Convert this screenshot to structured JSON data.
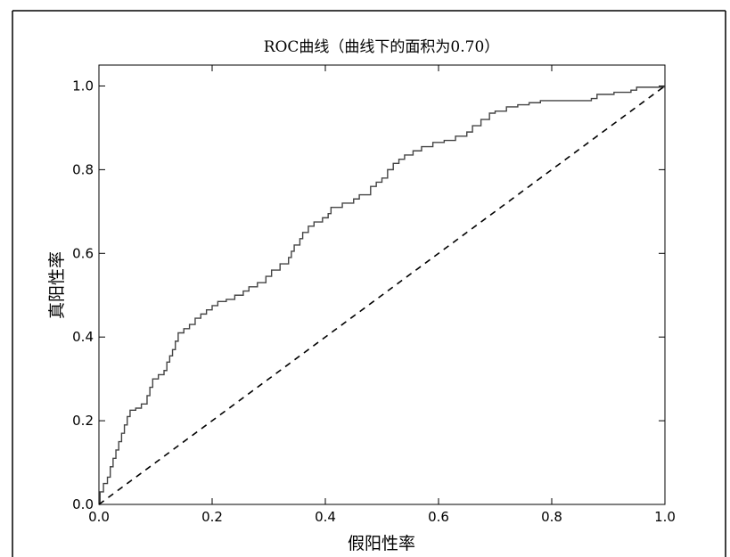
{
  "chart_data": {
    "type": "line",
    "title": "ROC曲线（曲线下的面积为0.70）",
    "xlabel": "假阳性率",
    "ylabel": "真阳性率",
    "xlim": [
      0.0,
      1.0
    ],
    "ylim": [
      0.0,
      1.05
    ],
    "xticks": [
      "0.0",
      "0.2",
      "0.4",
      "0.6",
      "0.8",
      "1.0"
    ],
    "yticks": [
      "0.0",
      "0.2",
      "0.4",
      "0.6",
      "0.8",
      "1.0"
    ],
    "grid": false,
    "legend": "none",
    "series": [
      {
        "style": "solid-step",
        "color": "#444444",
        "points": [
          [
            0.0,
            0.0
          ],
          [
            0.002,
            0.03
          ],
          [
            0.008,
            0.05
          ],
          [
            0.015,
            0.065
          ],
          [
            0.02,
            0.09
          ],
          [
            0.025,
            0.11
          ],
          [
            0.03,
            0.13
          ],
          [
            0.035,
            0.15
          ],
          [
            0.04,
            0.17
          ],
          [
            0.045,
            0.19
          ],
          [
            0.05,
            0.21
          ],
          [
            0.055,
            0.225
          ],
          [
            0.065,
            0.23
          ],
          [
            0.075,
            0.24
          ],
          [
            0.085,
            0.26
          ],
          [
            0.09,
            0.28
          ],
          [
            0.095,
            0.3
          ],
          [
            0.105,
            0.31
          ],
          [
            0.115,
            0.32
          ],
          [
            0.12,
            0.34
          ],
          [
            0.125,
            0.355
          ],
          [
            0.13,
            0.37
          ],
          [
            0.135,
            0.39
          ],
          [
            0.14,
            0.41
          ],
          [
            0.15,
            0.42
          ],
          [
            0.16,
            0.43
          ],
          [
            0.17,
            0.445
          ],
          [
            0.18,
            0.455
          ],
          [
            0.19,
            0.465
          ],
          [
            0.2,
            0.475
          ],
          [
            0.21,
            0.485
          ],
          [
            0.225,
            0.49
          ],
          [
            0.24,
            0.5
          ],
          [
            0.255,
            0.51
          ],
          [
            0.265,
            0.52
          ],
          [
            0.28,
            0.53
          ],
          [
            0.295,
            0.545
          ],
          [
            0.305,
            0.56
          ],
          [
            0.32,
            0.575
          ],
          [
            0.335,
            0.59
          ],
          [
            0.34,
            0.605
          ],
          [
            0.345,
            0.62
          ],
          [
            0.355,
            0.635
          ],
          [
            0.36,
            0.65
          ],
          [
            0.37,
            0.665
          ],
          [
            0.38,
            0.675
          ],
          [
            0.395,
            0.685
          ],
          [
            0.405,
            0.695
          ],
          [
            0.41,
            0.71
          ],
          [
            0.43,
            0.72
          ],
          [
            0.45,
            0.73
          ],
          [
            0.46,
            0.74
          ],
          [
            0.48,
            0.76
          ],
          [
            0.49,
            0.77
          ],
          [
            0.5,
            0.78
          ],
          [
            0.51,
            0.8
          ],
          [
            0.52,
            0.815
          ],
          [
            0.53,
            0.825
          ],
          [
            0.54,
            0.835
          ],
          [
            0.555,
            0.845
          ],
          [
            0.57,
            0.855
          ],
          [
            0.59,
            0.865
          ],
          [
            0.61,
            0.87
          ],
          [
            0.63,
            0.88
          ],
          [
            0.65,
            0.89
          ],
          [
            0.66,
            0.905
          ],
          [
            0.675,
            0.92
          ],
          [
            0.69,
            0.935
          ],
          [
            0.7,
            0.94
          ],
          [
            0.72,
            0.95
          ],
          [
            0.74,
            0.955
          ],
          [
            0.76,
            0.96
          ],
          [
            0.78,
            0.965
          ],
          [
            0.84,
            0.965
          ],
          [
            0.87,
            0.97
          ],
          [
            0.88,
            0.98
          ],
          [
            0.91,
            0.985
          ],
          [
            0.94,
            0.99
          ],
          [
            0.95,
            0.997
          ],
          [
            0.99,
            0.997
          ],
          [
            1.0,
            1.0
          ]
        ]
      },
      {
        "style": "dashed",
        "color": "#000000",
        "points": [
          [
            0.0,
            0.0
          ],
          [
            1.0,
            1.0
          ]
        ]
      }
    ]
  }
}
